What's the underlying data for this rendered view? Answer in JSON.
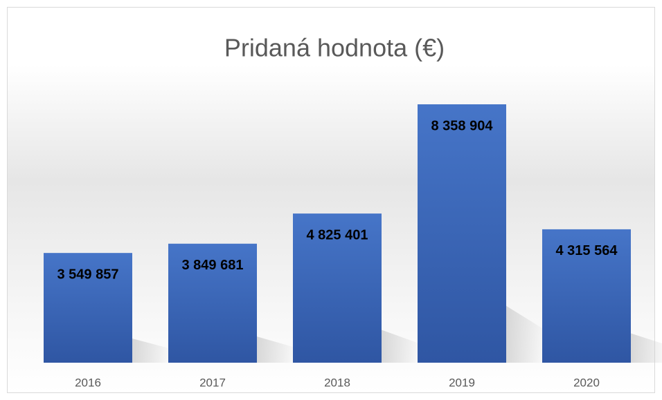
{
  "chart_data": {
    "type": "bar",
    "title": "Pridaná hodnota (€)",
    "categories": [
      "2016",
      "2017",
      "2018",
      "2019",
      "2020"
    ],
    "values": [
      3549857,
      3849681,
      4825401,
      8358904,
      4315564
    ],
    "value_labels": [
      "3 549 857",
      "3 849 681",
      "4 825 401",
      "8 358 904",
      "4 315 564"
    ],
    "color": "#4472c4"
  }
}
